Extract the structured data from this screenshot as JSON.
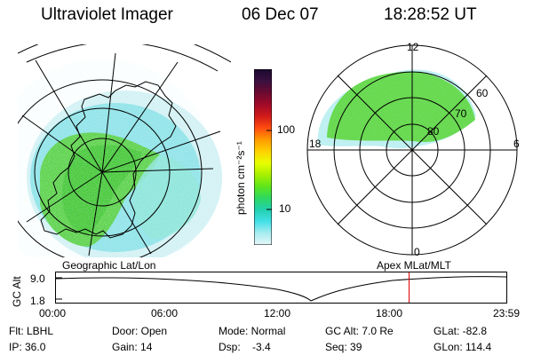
{
  "header": {
    "instrument": "Ultraviolet Imager",
    "date": "06 Dec 07",
    "time": "18:28:52 UT"
  },
  "colorbar": {
    "unit_label": "photon cm⁻²s⁻¹",
    "tick_labels": [
      "100",
      "10"
    ],
    "colors": [
      "#1a0a2e",
      "#3a1040",
      "#6a0a30",
      "#a00a28",
      "#d01a1a",
      "#ff4a10",
      "#ff9a00",
      "#ffd000",
      "#e8ff00",
      "#a8f000",
      "#5ee61a",
      "#2ed860",
      "#22d0b0",
      "#44e0e8",
      "#a8ecf0",
      "#e6f7f8"
    ]
  },
  "left_panel": {
    "projection_label": "Geographic Lat/Lon"
  },
  "right_panel": {
    "projection_label": "Apex  MLat/MLT",
    "mlt_labels": [
      "12",
      "18",
      "6",
      "0"
    ],
    "mlat_labels": [
      "60",
      "70",
      "80"
    ]
  },
  "altitude_plot": {
    "ylabel": "GC Alt",
    "y_ticks": [
      "9.0",
      "1.8"
    ],
    "x_ticks": [
      "00:00",
      "06:00",
      "12:00",
      "18:00",
      "23:59"
    ],
    "current_time_fraction": 0.784
  },
  "info": {
    "filter": "Flt: LBHL",
    "door": "Door: Open",
    "mode": "Mode: Normal",
    "gc_alt": "GC Alt: 7.0 Re",
    "glat": "GLat: -82.8",
    "ip": "IP: 36.0",
    "gain": "Gain: 14",
    "dsp": "Dsp:    -3.4",
    "seq": "Seq: 39",
    "glon": "GLon: 114.4"
  }
}
